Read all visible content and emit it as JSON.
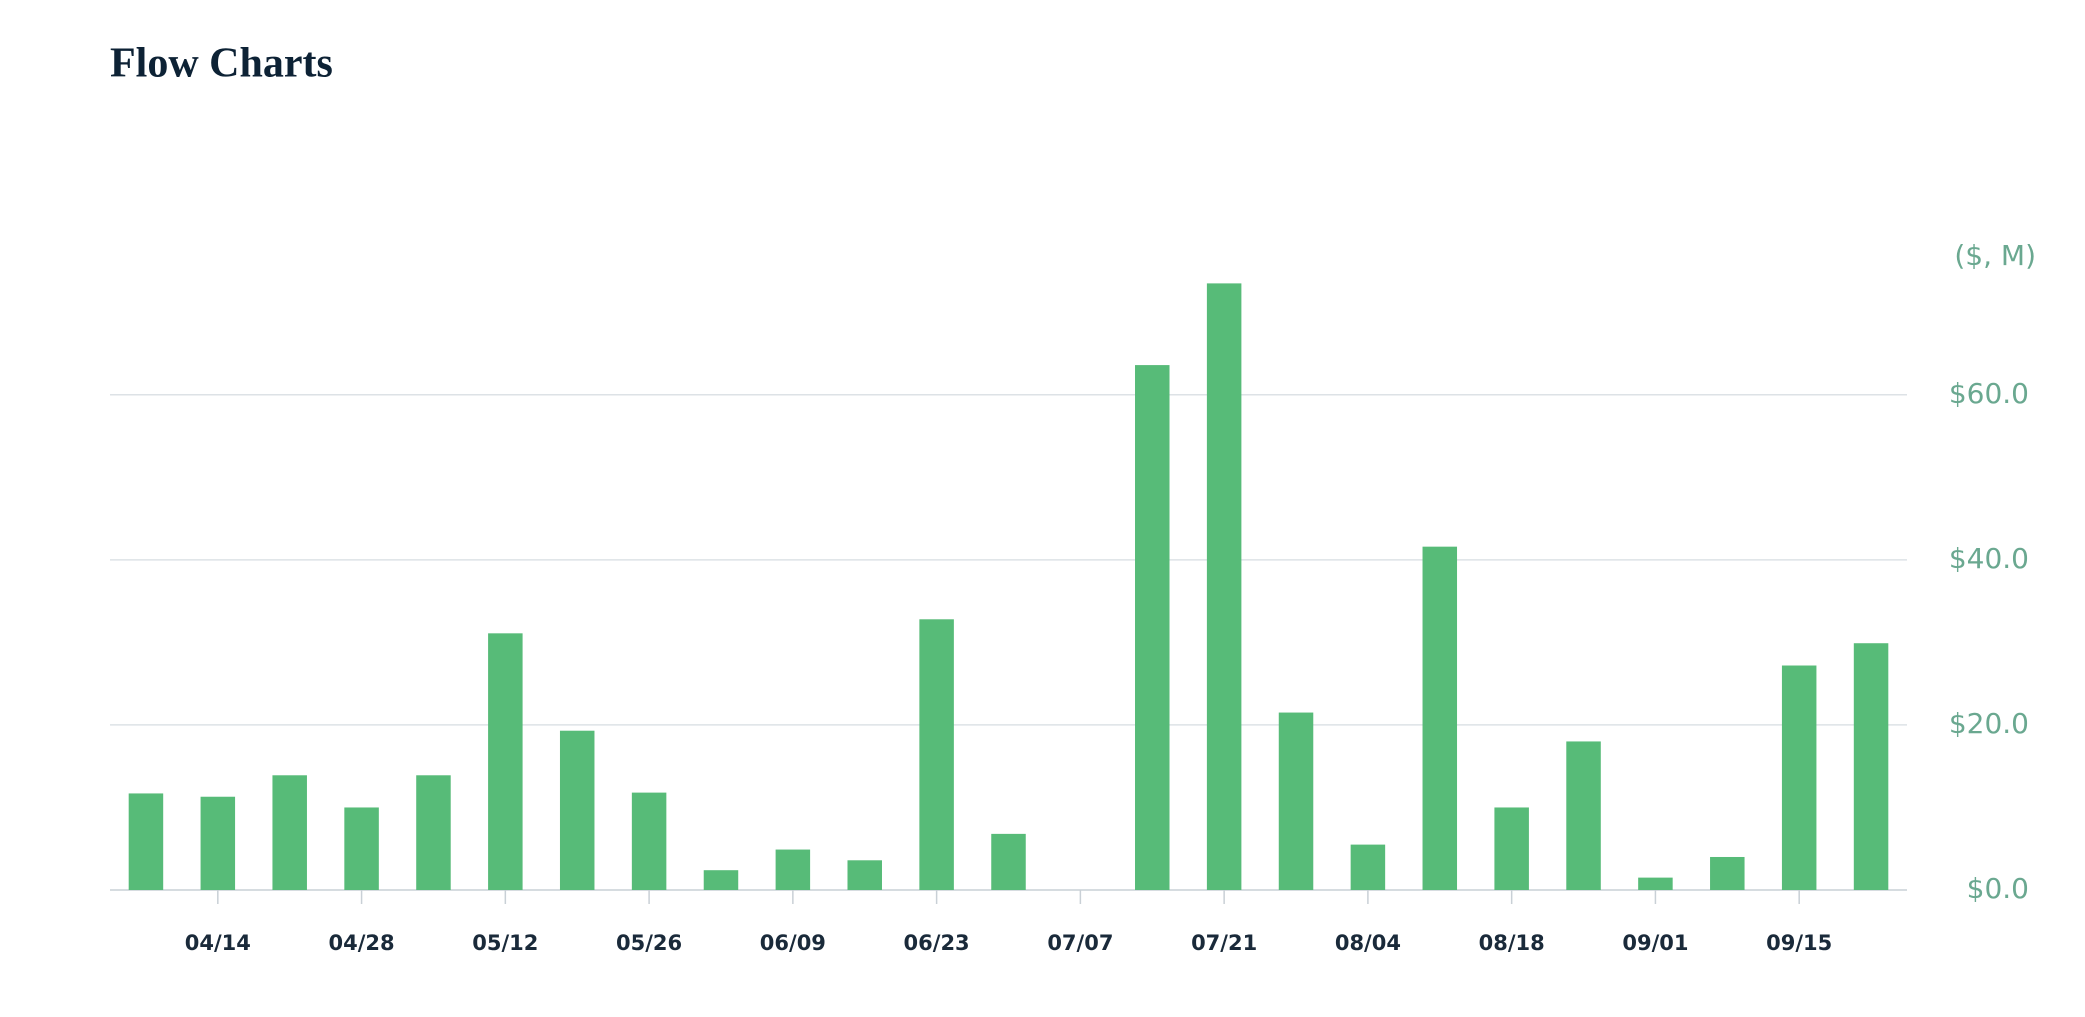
{
  "chart_data": {
    "type": "bar",
    "title": "Flow Charts",
    "y_axis_label": "($, M)",
    "categories": [
      null,
      "04/14",
      null,
      "04/28",
      null,
      "05/12",
      null,
      "05/26",
      null,
      "06/09",
      null,
      "06/23",
      null,
      "07/07",
      null,
      "07/21",
      null,
      "08/04",
      null,
      "08/18",
      null,
      "09/01",
      null,
      "09/15",
      null
    ],
    "values": [
      11.7,
      11.3,
      13.9,
      10.0,
      13.9,
      31.1,
      19.3,
      11.8,
      2.4,
      4.9,
      3.6,
      32.8,
      6.8,
      0,
      63.6,
      73.5,
      21.5,
      5.5,
      41.6,
      10.0,
      18.0,
      1.5,
      4.0,
      27.2,
      29.9
    ],
    "color": "#57bb78",
    "ylim": [
      0,
      75
    ],
    "yticks": [
      {
        "value": 0,
        "label": "$0.0"
      },
      {
        "value": 20,
        "label": "$20.0"
      },
      {
        "value": 40,
        "label": "$40.0"
      },
      {
        "value": 60,
        "label": "$60.0"
      }
    ],
    "grid": true
  }
}
